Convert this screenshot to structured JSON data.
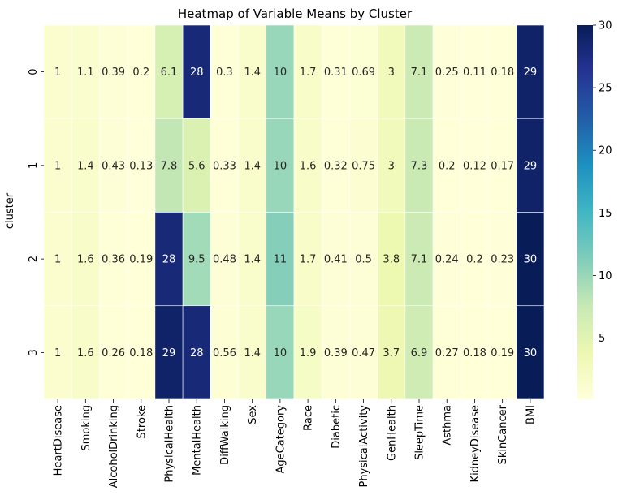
{
  "chart_data": {
    "type": "heatmap",
    "title": "Heatmap of Variable Means by Cluster",
    "xlabel": "",
    "ylabel": "cluster",
    "columns": [
      "HeartDisease",
      "Smoking",
      "AlcoholDrinking",
      "Stroke",
      "PhysicalHealth",
      "MentalHealth",
      "DiffWalking",
      "Sex",
      "AgeCategory",
      "Race",
      "Diabetic",
      "PhysicalActivity",
      "GenHealth",
      "SleepTime",
      "Asthma",
      "KidneyDisease",
      "SkinCancer",
      "BMI"
    ],
    "rows": [
      "0",
      "1",
      "2",
      "3"
    ],
    "values": [
      [
        1,
        1.1,
        0.39,
        0.2,
        6.1,
        28,
        0.3,
        1.4,
        10,
        1.7,
        0.31,
        0.69,
        3,
        7.1,
        0.25,
        0.11,
        0.18,
        29
      ],
      [
        1,
        1.4,
        0.43,
        0.13,
        7.8,
        5.6,
        0.33,
        1.4,
        10,
        1.6,
        0.32,
        0.75,
        3,
        7.3,
        0.2,
        0.12,
        0.17,
        29
      ],
      [
        1,
        1.6,
        0.36,
        0.19,
        28,
        9.5,
        0.48,
        1.4,
        11,
        1.7,
        0.41,
        0.5,
        3.8,
        7.1,
        0.24,
        0.2,
        0.23,
        30
      ],
      [
        1,
        1.6,
        0.26,
        0.18,
        29,
        28,
        0.56,
        1.4,
        10,
        1.9,
        0.39,
        0.47,
        3.7,
        6.9,
        0.27,
        0.18,
        0.19,
        30
      ]
    ],
    "colormap": "YlGnBu",
    "vmin": 0.11,
    "vmax": 30,
    "colorbar_ticks": [
      5,
      10,
      15,
      20,
      25,
      30
    ],
    "cell_border_color": "#ffffff"
  }
}
